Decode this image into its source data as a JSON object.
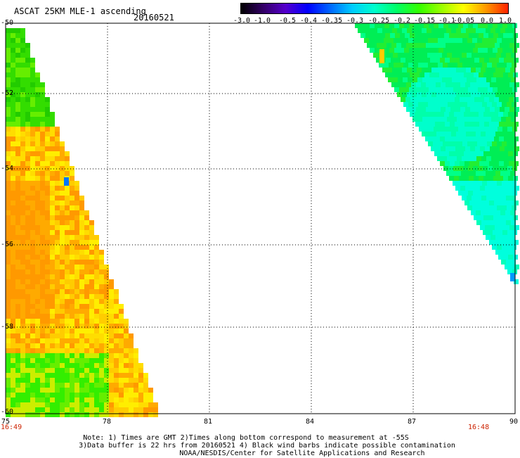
{
  "header": {
    "title": "ASCAT 25KM MLE-1 ascending",
    "date": "20160521"
  },
  "colorbar": {
    "labels": [
      "-3.0",
      "-1.0",
      "-0.5",
      "-0.4",
      "-0.35",
      "-0.3",
      "-0.25",
      "-0.2",
      "-0.15",
      "-0.1",
      "-0.05",
      "0.0",
      "1.0"
    ],
    "colors": [
      "#000000",
      "#330066",
      "#5500cc",
      "#0000ff",
      "#0066ff",
      "#00ccff",
      "#00ffcc",
      "#00ff66",
      "#33ff00",
      "#99ff00",
      "#ffff00",
      "#ff9900",
      "#ff2200"
    ]
  },
  "map": {
    "lat_labels": [
      "-50",
      "-52",
      "-54",
      "-56",
      "-58",
      "-60"
    ],
    "lon_labels": [
      "75",
      "78",
      "81",
      "84",
      "87",
      "90"
    ],
    "time_left": "16:49",
    "time_right": "16:48"
  },
  "footer": {
    "line1": "Note: 1) Times are GMT 2)Times along bottom correspond to measurement at -55S",
    "line2": "3)Data buffer is 22 hrs from 20160521 4) Black wind barbs indicate possible contamination",
    "line3": "NOAA/NESDIS/Center for Satellite Applications and Research"
  }
}
